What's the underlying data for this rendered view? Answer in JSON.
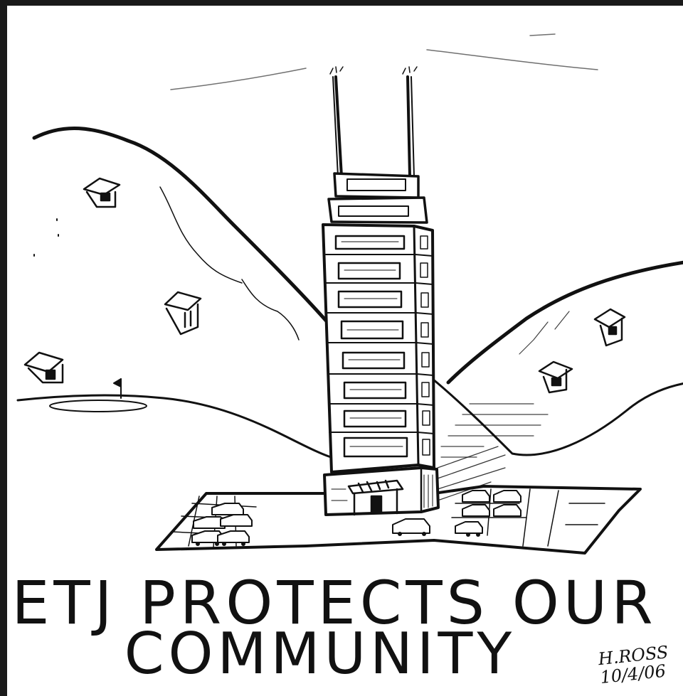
{
  "cartoon": {
    "caption_line_1": "ETJ PROTECTS OUR",
    "caption_line_2": "COMMUNITY",
    "signature_name": "H.ROSS",
    "signature_date": "10/4/06"
  },
  "colors": {
    "ink": "#111111",
    "paper": "#ffffff"
  }
}
